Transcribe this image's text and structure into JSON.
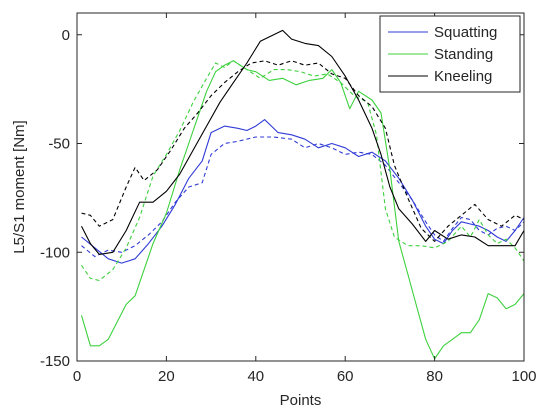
{
  "chart_data": {
    "type": "line",
    "title": "",
    "xlabel": "Points",
    "ylabel": "L5/S1 moment [Nm]",
    "xlim": [
      0,
      100
    ],
    "ylim": [
      -150,
      10
    ],
    "xticks": [
      0,
      20,
      40,
      60,
      80,
      100
    ],
    "yticks": [
      0,
      -50,
      -100,
      -150
    ],
    "xtick_labels": [
      "0",
      "20",
      "40",
      "60",
      "80",
      "100"
    ],
    "ytick_labels": [
      "0",
      "-50",
      "-100",
      "-150"
    ],
    "grid": false,
    "legend": {
      "position": "top-right",
      "entries": [
        {
          "label": "Squatting",
          "color": "#2f3bd6"
        },
        {
          "label": "Standing",
          "color": "#3ed13e"
        },
        {
          "label": "Kneeling",
          "color": "#000000"
        }
      ]
    },
    "series": [
      {
        "name": "Squatting",
        "variant": "solid",
        "color": "#2f3bd6",
        "x": [
          1,
          4,
          7,
          10,
          13,
          16,
          19,
          22,
          25,
          28,
          30,
          33,
          36,
          38,
          40,
          42,
          45,
          48,
          51,
          54,
          57,
          60,
          63,
          66,
          69,
          72,
          75,
          78,
          80,
          82,
          84,
          86,
          88,
          90,
          92,
          94,
          96,
          98,
          100
        ],
        "y": [
          -93,
          -98,
          -103,
          -105,
          -103,
          -96,
          -88,
          -78,
          -66,
          -58,
          -45,
          -42,
          -43,
          -44,
          -42,
          -39,
          -45,
          -46,
          -48,
          -52,
          -50,
          -52,
          -56,
          -54,
          -58,
          -66,
          -76,
          -88,
          -94,
          -96,
          -90,
          -86,
          -87,
          -88,
          -90,
          -93,
          -95,
          -90,
          -84
        ]
      },
      {
        "name": "Squatting",
        "variant": "dashed",
        "color": "#2f3bd6",
        "x": [
          1,
          4,
          7,
          10,
          13,
          16,
          19,
          22,
          25,
          28,
          30,
          33,
          36,
          40,
          44,
          48,
          51,
          54,
          57,
          60,
          63,
          66,
          69,
          72,
          75,
          78,
          80,
          82,
          84,
          86,
          88,
          90,
          92,
          94,
          96,
          98,
          100
        ],
        "y": [
          -97,
          -102,
          -99,
          -100,
          -97,
          -92,
          -86,
          -77,
          -70,
          -68,
          -55,
          -50,
          -49,
          -47,
          -47,
          -48,
          -52,
          -50,
          -52,
          -55,
          -54,
          -55,
          -60,
          -68,
          -76,
          -86,
          -92,
          -95,
          -89,
          -84,
          -85,
          -90,
          -92,
          -89,
          -88,
          -90,
          -86
        ]
      },
      {
        "name": "Standing",
        "variant": "solid",
        "color": "#3ed13e",
        "x": [
          1,
          3,
          5,
          7,
          9,
          11,
          13,
          15,
          17,
          20,
          23,
          26,
          29,
          31,
          33,
          35,
          38,
          40,
          43,
          46,
          49,
          52,
          55,
          57,
          59,
          61,
          63,
          66,
          68,
          70,
          72,
          74,
          76,
          78,
          80,
          82,
          84,
          86,
          88,
          90,
          92,
          94,
          96,
          98,
          100
        ],
        "y": [
          -129,
          -143,
          -143,
          -140,
          -132,
          -124,
          -120,
          -108,
          -96,
          -82,
          -62,
          -44,
          -26,
          -17,
          -14,
          -12,
          -16,
          -17,
          -21,
          -20,
          -23,
          -21,
          -20,
          -16,
          -22,
          -34,
          -26,
          -30,
          -36,
          -62,
          -95,
          -110,
          -125,
          -140,
          -149,
          -143,
          -140,
          -137,
          -137,
          -131,
          -119,
          -121,
          -126,
          -124,
          -119
        ]
      },
      {
        "name": "Standing",
        "variant": "dashed",
        "color": "#3ed13e",
        "x": [
          1,
          3,
          5,
          8,
          11,
          14,
          17,
          20,
          23,
          26,
          29,
          31,
          33,
          35,
          38,
          41,
          44,
          47,
          50,
          53,
          56,
          59,
          62,
          65,
          67,
          69,
          71,
          74,
          77,
          80,
          83,
          86,
          88,
          90,
          92,
          94,
          96,
          98,
          100
        ],
        "y": [
          -106,
          -112,
          -113,
          -108,
          -98,
          -84,
          -65,
          -55,
          -44,
          -31,
          -20,
          -13,
          -15,
          -12,
          -16,
          -20,
          -16,
          -16,
          -17,
          -19,
          -18,
          -22,
          -28,
          -31,
          -46,
          -80,
          -93,
          -97,
          -97,
          -98,
          -95,
          -88,
          -93,
          -85,
          -92,
          -96,
          -94,
          -98,
          -104
        ]
      },
      {
        "name": "Kneeling",
        "variant": "solid",
        "color": "#000000",
        "x": [
          1,
          3,
          5,
          8,
          11,
          14,
          17,
          20,
          23,
          26,
          29,
          32,
          35,
          38,
          41,
          44,
          46,
          48,
          51,
          54,
          57,
          60,
          63,
          66,
          68,
          70,
          72,
          75,
          78,
          80,
          83,
          86,
          89,
          92,
          95,
          98,
          100
        ],
        "y": [
          -88,
          -96,
          -101,
          -100,
          -90,
          -77,
          -77,
          -72,
          -64,
          -53,
          -42,
          -31,
          -22,
          -13,
          -3,
          0,
          2,
          -2,
          -4,
          -5,
          -10,
          -19,
          -30,
          -43,
          -55,
          -70,
          -80,
          -87,
          -95,
          -90,
          -94,
          -92,
          -93,
          -97,
          -97,
          -97,
          -90
        ]
      },
      {
        "name": "Kneeling",
        "variant": "dashed",
        "color": "#000000",
        "x": [
          1,
          3,
          5,
          8,
          11,
          13,
          15,
          18,
          21,
          24,
          27,
          30,
          33,
          36,
          39,
          42,
          45,
          48,
          51,
          54,
          57,
          60,
          63,
          66,
          69,
          71,
          74,
          77,
          80,
          83,
          86,
          89,
          92,
          95,
          98,
          100
        ],
        "y": [
          -82,
          -83,
          -88,
          -85,
          -70,
          -61,
          -67,
          -62,
          -53,
          -43,
          -36,
          -28,
          -22,
          -17,
          -13,
          -12,
          -14,
          -12,
          -14,
          -13,
          -18,
          -20,
          -28,
          -33,
          -43,
          -60,
          -75,
          -89,
          -95,
          -88,
          -83,
          -78,
          -85,
          -88,
          -83,
          -85
        ]
      }
    ]
  }
}
